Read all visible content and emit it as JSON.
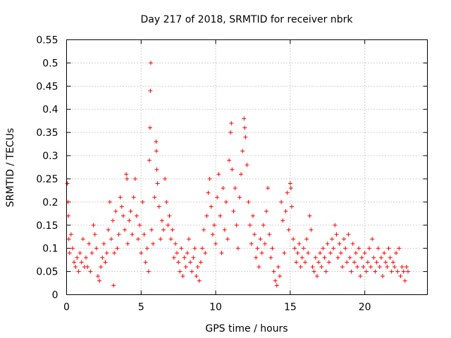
{
  "chart_data": {
    "type": "scatter",
    "title": "Day 217 of 2018, SRMTID for receiver nbrk",
    "xlabel": "GPS time / hours",
    "ylabel": "SRMTID / TECUs",
    "xlim": [
      0,
      24.2
    ],
    "ylim": [
      0,
      0.55
    ],
    "xticks": [
      0,
      5,
      10,
      15,
      20
    ],
    "xtick_labels": [
      "0",
      "5",
      "10",
      "15",
      "20"
    ],
    "yticks": [
      0,
      0.05,
      0.1,
      0.15,
      0.2,
      0.25,
      0.3,
      0.35,
      0.4,
      0.45,
      0.5,
      0.55
    ],
    "ytick_labels": [
      "0",
      "0.05",
      "0.1",
      "0.15",
      "0.2",
      "0.25",
      "0.3",
      "0.35",
      "0.4",
      "0.45",
      "0.5",
      "0.55"
    ],
    "grid": true,
    "marker": "plus",
    "color": "#ff0000",
    "series": [
      {
        "name": "SRMTID",
        "points": [
          [
            0.05,
            0.24
          ],
          [
            0.1,
            0.2
          ],
          [
            0.12,
            0.17
          ],
          [
            0.15,
            0.12
          ],
          [
            0.2,
            0.09
          ],
          [
            0.3,
            0.13
          ],
          [
            0.4,
            0.1
          ],
          [
            0.5,
            0.07
          ],
          [
            0.6,
            0.06
          ],
          [
            0.7,
            0.08
          ],
          [
            0.8,
            0.05
          ],
          [
            0.9,
            0.09
          ],
          [
            1.0,
            0.07
          ],
          [
            1.1,
            0.12
          ],
          [
            1.2,
            0.06
          ],
          [
            1.3,
            0.08
          ],
          [
            1.4,
            0.06
          ],
          [
            1.5,
            0.11
          ],
          [
            1.6,
            0.05
          ],
          [
            1.7,
            0.09
          ],
          [
            1.8,
            0.15
          ],
          [
            1.9,
            0.13
          ],
          [
            2.0,
            0.1
          ],
          [
            2.1,
            0.04
          ],
          [
            2.2,
            0.03
          ],
          [
            2.3,
            0.06
          ],
          [
            2.4,
            0.08
          ],
          [
            2.5,
            0.11
          ],
          [
            2.6,
            0.07
          ],
          [
            2.7,
            0.09
          ],
          [
            2.8,
            0.14
          ],
          [
            2.9,
            0.2
          ],
          [
            3.0,
            0.12
          ],
          [
            3.1,
            0.16
          ],
          [
            3.15,
            0.02
          ],
          [
            3.2,
            0.09
          ],
          [
            3.3,
            0.18
          ],
          [
            3.4,
            0.1
          ],
          [
            3.5,
            0.13
          ],
          [
            3.6,
            0.21
          ],
          [
            3.7,
            0.19
          ],
          [
            3.8,
            0.17
          ],
          [
            3.9,
            0.14
          ],
          [
            4.0,
            0.26
          ],
          [
            4.05,
            0.25
          ],
          [
            4.1,
            0.11
          ],
          [
            4.2,
            0.16
          ],
          [
            4.3,
            0.18
          ],
          [
            4.4,
            0.13
          ],
          [
            4.5,
            0.21
          ],
          [
            4.6,
            0.25
          ],
          [
            4.7,
            0.17
          ],
          [
            4.8,
            0.12
          ],
          [
            4.9,
            0.15
          ],
          [
            5.0,
            0.09
          ],
          [
            5.1,
            0.2
          ],
          [
            5.2,
            0.13
          ],
          [
            5.3,
            0.07
          ],
          [
            5.4,
            0.1
          ],
          [
            5.5,
            0.05
          ],
          [
            5.55,
            0.29
          ],
          [
            5.6,
            0.36
          ],
          [
            5.62,
            0.44
          ],
          [
            5.65,
            0.5
          ],
          [
            5.7,
            0.14
          ],
          [
            5.8,
            0.11
          ],
          [
            5.9,
            0.21
          ],
          [
            6.0,
            0.33
          ],
          [
            6.02,
            0.31
          ],
          [
            6.05,
            0.27
          ],
          [
            6.1,
            0.24
          ],
          [
            6.2,
            0.19
          ],
          [
            6.3,
            0.12
          ],
          [
            6.4,
            0.16
          ],
          [
            6.5,
            0.14
          ],
          [
            6.6,
            0.25
          ],
          [
            6.7,
            0.2
          ],
          [
            6.8,
            0.15
          ],
          [
            6.9,
            0.17
          ],
          [
            7.0,
            0.12
          ],
          [
            7.1,
            0.14
          ],
          [
            7.2,
            0.08
          ],
          [
            7.3,
            0.11
          ],
          [
            7.4,
            0.09
          ],
          [
            7.5,
            0.07
          ],
          [
            7.6,
            0.05
          ],
          [
            7.7,
            0.1
          ],
          [
            7.8,
            0.04
          ],
          [
            7.9,
            0.08
          ],
          [
            8.0,
            0.06
          ],
          [
            8.1,
            0.09
          ],
          [
            8.2,
            0.12
          ],
          [
            8.3,
            0.07
          ],
          [
            8.4,
            0.05
          ],
          [
            8.5,
            0.08
          ],
          [
            8.6,
            0.1
          ],
          [
            8.7,
            0.04
          ],
          [
            8.8,
            0.06
          ],
          [
            8.9,
            0.03
          ],
          [
            9.0,
            0.07
          ],
          [
            9.1,
            0.1
          ],
          [
            9.2,
            0.14
          ],
          [
            9.3,
            0.09
          ],
          [
            9.4,
            0.17
          ],
          [
            9.5,
            0.22
          ],
          [
            9.6,
            0.25
          ],
          [
            9.7,
            0.19
          ],
          [
            9.8,
            0.13
          ],
          [
            9.9,
            0.15
          ],
          [
            10.0,
            0.11
          ],
          [
            10.1,
            0.21
          ],
          [
            10.2,
            0.26
          ],
          [
            10.3,
            0.17
          ],
          [
            10.4,
            0.09
          ],
          [
            10.5,
            0.23
          ],
          [
            10.6,
            0.14
          ],
          [
            10.7,
            0.2
          ],
          [
            10.8,
            0.12
          ],
          [
            10.9,
            0.29
          ],
          [
            11.0,
            0.35
          ],
          [
            11.05,
            0.37
          ],
          [
            11.1,
            0.27
          ],
          [
            11.2,
            0.18
          ],
          [
            11.3,
            0.23
          ],
          [
            11.4,
            0.15
          ],
          [
            11.5,
            0.1
          ],
          [
            11.6,
            0.21
          ],
          [
            11.7,
            0.26
          ],
          [
            11.8,
            0.31
          ],
          [
            11.9,
            0.38
          ],
          [
            11.95,
            0.36
          ],
          [
            12.0,
            0.34
          ],
          [
            12.1,
            0.28
          ],
          [
            12.2,
            0.2
          ],
          [
            12.3,
            0.15
          ],
          [
            12.4,
            0.11
          ],
          [
            12.5,
            0.17
          ],
          [
            12.6,
            0.13
          ],
          [
            12.7,
            0.08
          ],
          [
            12.8,
            0.1
          ],
          [
            12.9,
            0.06
          ],
          [
            13.0,
            0.12
          ],
          [
            13.1,
            0.09
          ],
          [
            13.2,
            0.15
          ],
          [
            13.3,
            0.11
          ],
          [
            13.4,
            0.18
          ],
          [
            13.5,
            0.23
          ],
          [
            13.6,
            0.13
          ],
          [
            13.7,
            0.08
          ],
          [
            13.8,
            0.1
          ],
          [
            13.9,
            0.05
          ],
          [
            14.0,
            0.03
          ],
          [
            14.1,
            0.02
          ],
          [
            14.2,
            0.06
          ],
          [
            14.3,
            0.04
          ],
          [
            14.4,
            0.2
          ],
          [
            14.5,
            0.16
          ],
          [
            14.6,
            0.09
          ],
          [
            14.7,
            0.18
          ],
          [
            14.8,
            0.22
          ],
          [
            14.9,
            0.14
          ],
          [
            15.0,
            0.24
          ],
          [
            15.05,
            0.23
          ],
          [
            15.1,
            0.19
          ],
          [
            15.2,
            0.12
          ],
          [
            15.3,
            0.1
          ],
          [
            15.4,
            0.07
          ],
          [
            15.5,
            0.09
          ],
          [
            15.6,
            0.11
          ],
          [
            15.7,
            0.06
          ],
          [
            15.8,
            0.08
          ],
          [
            15.9,
            0.1
          ],
          [
            16.0,
            0.07
          ],
          [
            16.1,
            0.12
          ],
          [
            16.2,
            0.09
          ],
          [
            16.3,
            0.17
          ],
          [
            16.4,
            0.14
          ],
          [
            16.5,
            0.06
          ],
          [
            16.6,
            0.05
          ],
          [
            16.7,
            0.08
          ],
          [
            16.8,
            0.04
          ],
          [
            16.9,
            0.07
          ],
          [
            17.0,
            0.09
          ],
          [
            17.1,
            0.06
          ],
          [
            17.2,
            0.1
          ],
          [
            17.3,
            0.08
          ],
          [
            17.4,
            0.05
          ],
          [
            17.5,
            0.11
          ],
          [
            17.6,
            0.07
          ],
          [
            17.7,
            0.09
          ],
          [
            17.8,
            0.12
          ],
          [
            17.9,
            0.1
          ],
          [
            18.0,
            0.15
          ],
          [
            18.1,
            0.13
          ],
          [
            18.2,
            0.08
          ],
          [
            18.3,
            0.11
          ],
          [
            18.4,
            0.09
          ],
          [
            18.5,
            0.06
          ],
          [
            18.6,
            0.12
          ],
          [
            18.7,
            0.1
          ],
          [
            18.8,
            0.07
          ],
          [
            18.9,
            0.13
          ],
          [
            19.0,
            0.08
          ],
          [
            19.1,
            0.05
          ],
          [
            19.2,
            0.11
          ],
          [
            19.3,
            0.07
          ],
          [
            19.4,
            0.09
          ],
          [
            19.5,
            0.06
          ],
          [
            19.6,
            0.1
          ],
          [
            19.7,
            0.04
          ],
          [
            19.8,
            0.08
          ],
          [
            19.9,
            0.06
          ],
          [
            20.0,
            0.09
          ],
          [
            20.1,
            0.05
          ],
          [
            20.2,
            0.07
          ],
          [
            20.3,
            0.1
          ],
          [
            20.4,
            0.06
          ],
          [
            20.5,
            0.12
          ],
          [
            20.6,
            0.08
          ],
          [
            20.7,
            0.05
          ],
          [
            20.8,
            0.07
          ],
          [
            20.9,
            0.1
          ],
          [
            21.0,
            0.06
          ],
          [
            21.1,
            0.08
          ],
          [
            21.2,
            0.04
          ],
          [
            21.3,
            0.09
          ],
          [
            21.4,
            0.07
          ],
          [
            21.5,
            0.06
          ],
          [
            21.6,
            0.1
          ],
          [
            21.7,
            0.08
          ],
          [
            21.8,
            0.05
          ],
          [
            21.9,
            0.07
          ],
          [
            22.0,
            0.06
          ],
          [
            22.1,
            0.09
          ],
          [
            22.2,
            0.05
          ],
          [
            22.3,
            0.1
          ],
          [
            22.4,
            0.04
          ],
          [
            22.5,
            0.06
          ],
          [
            22.6,
            0.05
          ],
          [
            22.7,
            0.03
          ],
          [
            22.8,
            0.06
          ],
          [
            22.9,
            0.05
          ]
        ]
      }
    ]
  }
}
